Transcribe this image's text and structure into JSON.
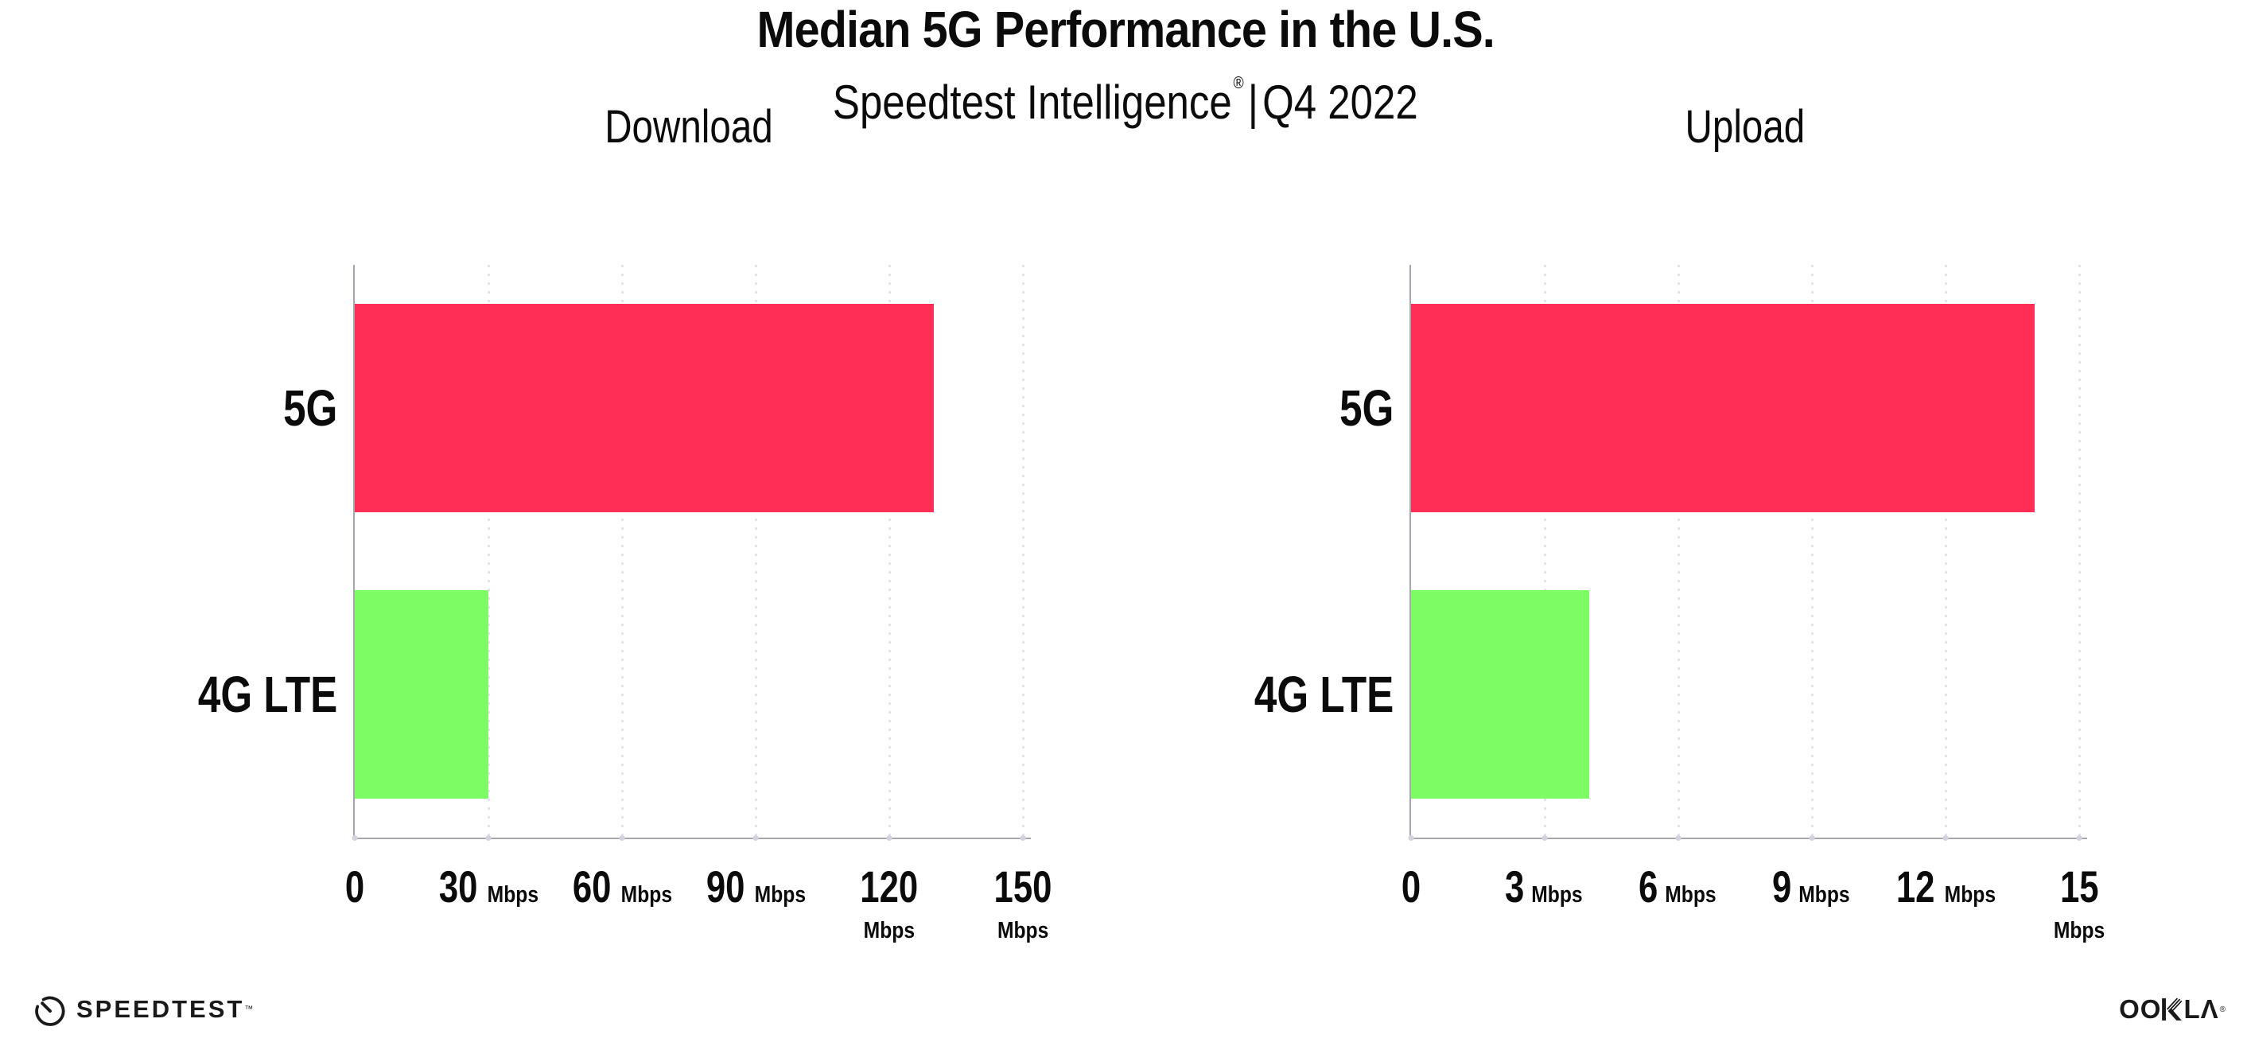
{
  "header": {
    "title": "Median 5G Performance in the U.S.",
    "subtitle_brand": "Speedtest Intelligence",
    "subtitle_reg": "®",
    "subtitle_sep": "|",
    "subtitle_period": "Q4 2022"
  },
  "chart_data": [
    {
      "type": "bar",
      "orientation": "horizontal",
      "title": "Download",
      "categories": [
        "5G",
        "4G LTE"
      ],
      "values": [
        130,
        30
      ],
      "unit": "Mbps",
      "xlim": [
        0,
        150
      ],
      "xticks": [
        0,
        30,
        60,
        90,
        120,
        150
      ],
      "bar_colors": [
        "#FF2E56",
        "#7DFC64"
      ],
      "grid": "dotted-vertical",
      "legend": "none"
    },
    {
      "type": "bar",
      "orientation": "horizontal",
      "title": "Upload",
      "categories": [
        "5G",
        "4G LTE"
      ],
      "values": [
        14,
        4
      ],
      "unit": "Mbps",
      "xlim": [
        0,
        15
      ],
      "xticks": [
        0,
        3,
        6,
        9,
        12,
        15
      ],
      "bar_colors": [
        "#FF2E56",
        "#7DFC64"
      ],
      "grid": "dotted-vertical",
      "legend": "none"
    }
  ],
  "footer": {
    "speedtest_label": "SPEEDTEST",
    "speedtest_tm": "™",
    "ookla_label": "OOKLA",
    "ookla_oo": "OO",
    "ookla_la": "LΛ",
    "ookla_reg": "®"
  }
}
